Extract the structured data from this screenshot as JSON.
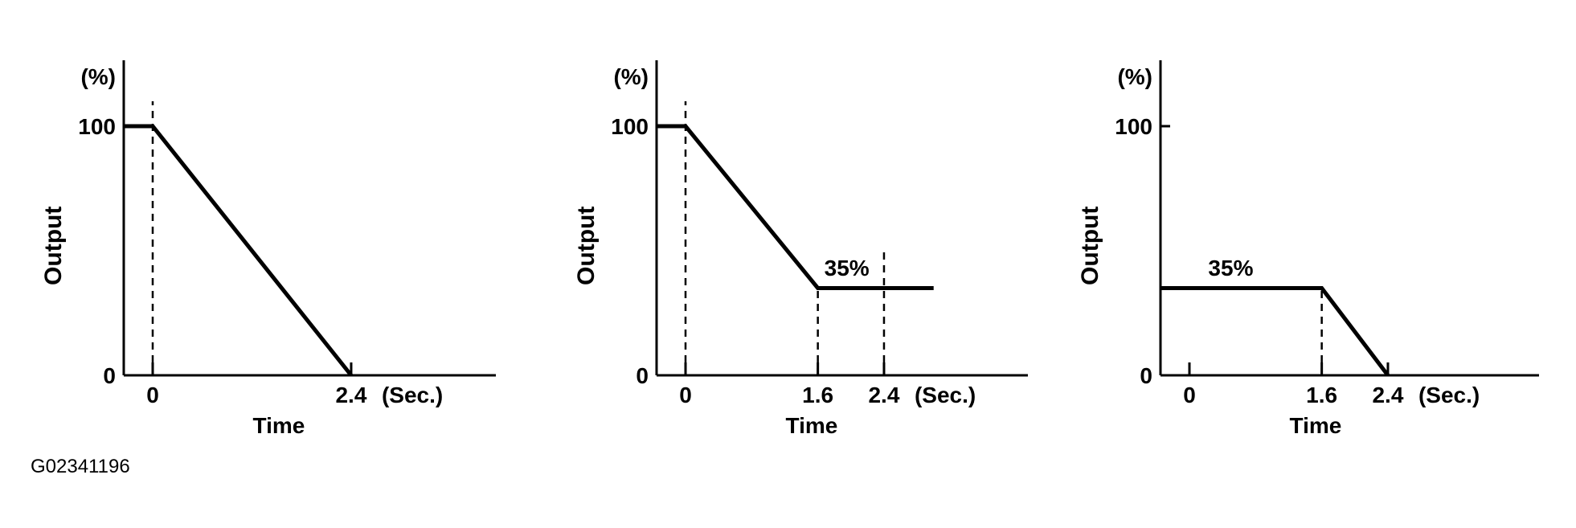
{
  "figure_id": "G02341196",
  "chart_data": [
    {
      "type": "line",
      "title": "",
      "xlabel": "Time",
      "ylabel": "Output",
      "y_unit": "(%)",
      "x_unit": "(Sec.)",
      "xlim": [
        -0.35,
        2.7
      ],
      "ylim": [
        0,
        110
      ],
      "x_ticks": [
        {
          "value": 0,
          "label": "0"
        },
        {
          "value": 2.4,
          "label": "2.4"
        }
      ],
      "y_ticks": [
        {
          "value": 0,
          "label": "0"
        },
        {
          "value": 100,
          "label": "100"
        }
      ],
      "series": [
        {
          "points": [
            [
              -0.35,
              100
            ],
            [
              0,
              100
            ],
            [
              2.4,
              0
            ]
          ]
        }
      ],
      "guide_lines": [
        {
          "x": 0,
          "y_from": 0,
          "y_to": 110
        }
      ],
      "annotations": []
    },
    {
      "type": "line",
      "title": "",
      "xlabel": "Time",
      "ylabel": "Output",
      "y_unit": "(%)",
      "x_unit": "(Sec.)",
      "xlim": [
        -0.35,
        2.7
      ],
      "ylim": [
        0,
        110
      ],
      "x_ticks": [
        {
          "value": 0,
          "label": "0"
        },
        {
          "value": 1.6,
          "label": "1.6"
        },
        {
          "value": 2.4,
          "label": "2.4"
        }
      ],
      "y_ticks": [
        {
          "value": 0,
          "label": "0"
        },
        {
          "value": 100,
          "label": "100"
        }
      ],
      "series": [
        {
          "points": [
            [
              -0.35,
              100
            ],
            [
              0,
              100
            ],
            [
              1.6,
              35
            ],
            [
              3.0,
              35
            ]
          ]
        }
      ],
      "guide_lines": [
        {
          "x": 0,
          "y_from": 0,
          "y_to": 110
        },
        {
          "x": 1.6,
          "y_from": 0,
          "y_to": 35
        },
        {
          "x": 2.4,
          "y_from": 0,
          "y_to": 50
        }
      ],
      "annotations": [
        {
          "text": "35%",
          "x": 1.95,
          "y": 40
        }
      ]
    },
    {
      "type": "line",
      "title": "",
      "xlabel": "Time",
      "ylabel": "Output",
      "y_unit": "(%)",
      "x_unit": "(Sec.)",
      "xlim": [
        -0.35,
        2.7
      ],
      "ylim": [
        0,
        110
      ],
      "x_ticks": [
        {
          "value": 0,
          "label": "0"
        },
        {
          "value": 1.6,
          "label": "1.6"
        },
        {
          "value": 2.4,
          "label": "2.4"
        }
      ],
      "y_ticks": [
        {
          "value": 0,
          "label": "0"
        },
        {
          "value": 100,
          "label": "100"
        }
      ],
      "series": [
        {
          "points": [
            [
              -0.35,
              35
            ],
            [
              1.6,
              35
            ],
            [
              2.4,
              0
            ]
          ]
        }
      ],
      "guide_lines": [
        {
          "x": 1.6,
          "y_from": 0,
          "y_to": 35
        }
      ],
      "annotations": [
        {
          "text": "35%",
          "x": 0.5,
          "y": 40
        }
      ]
    }
  ]
}
